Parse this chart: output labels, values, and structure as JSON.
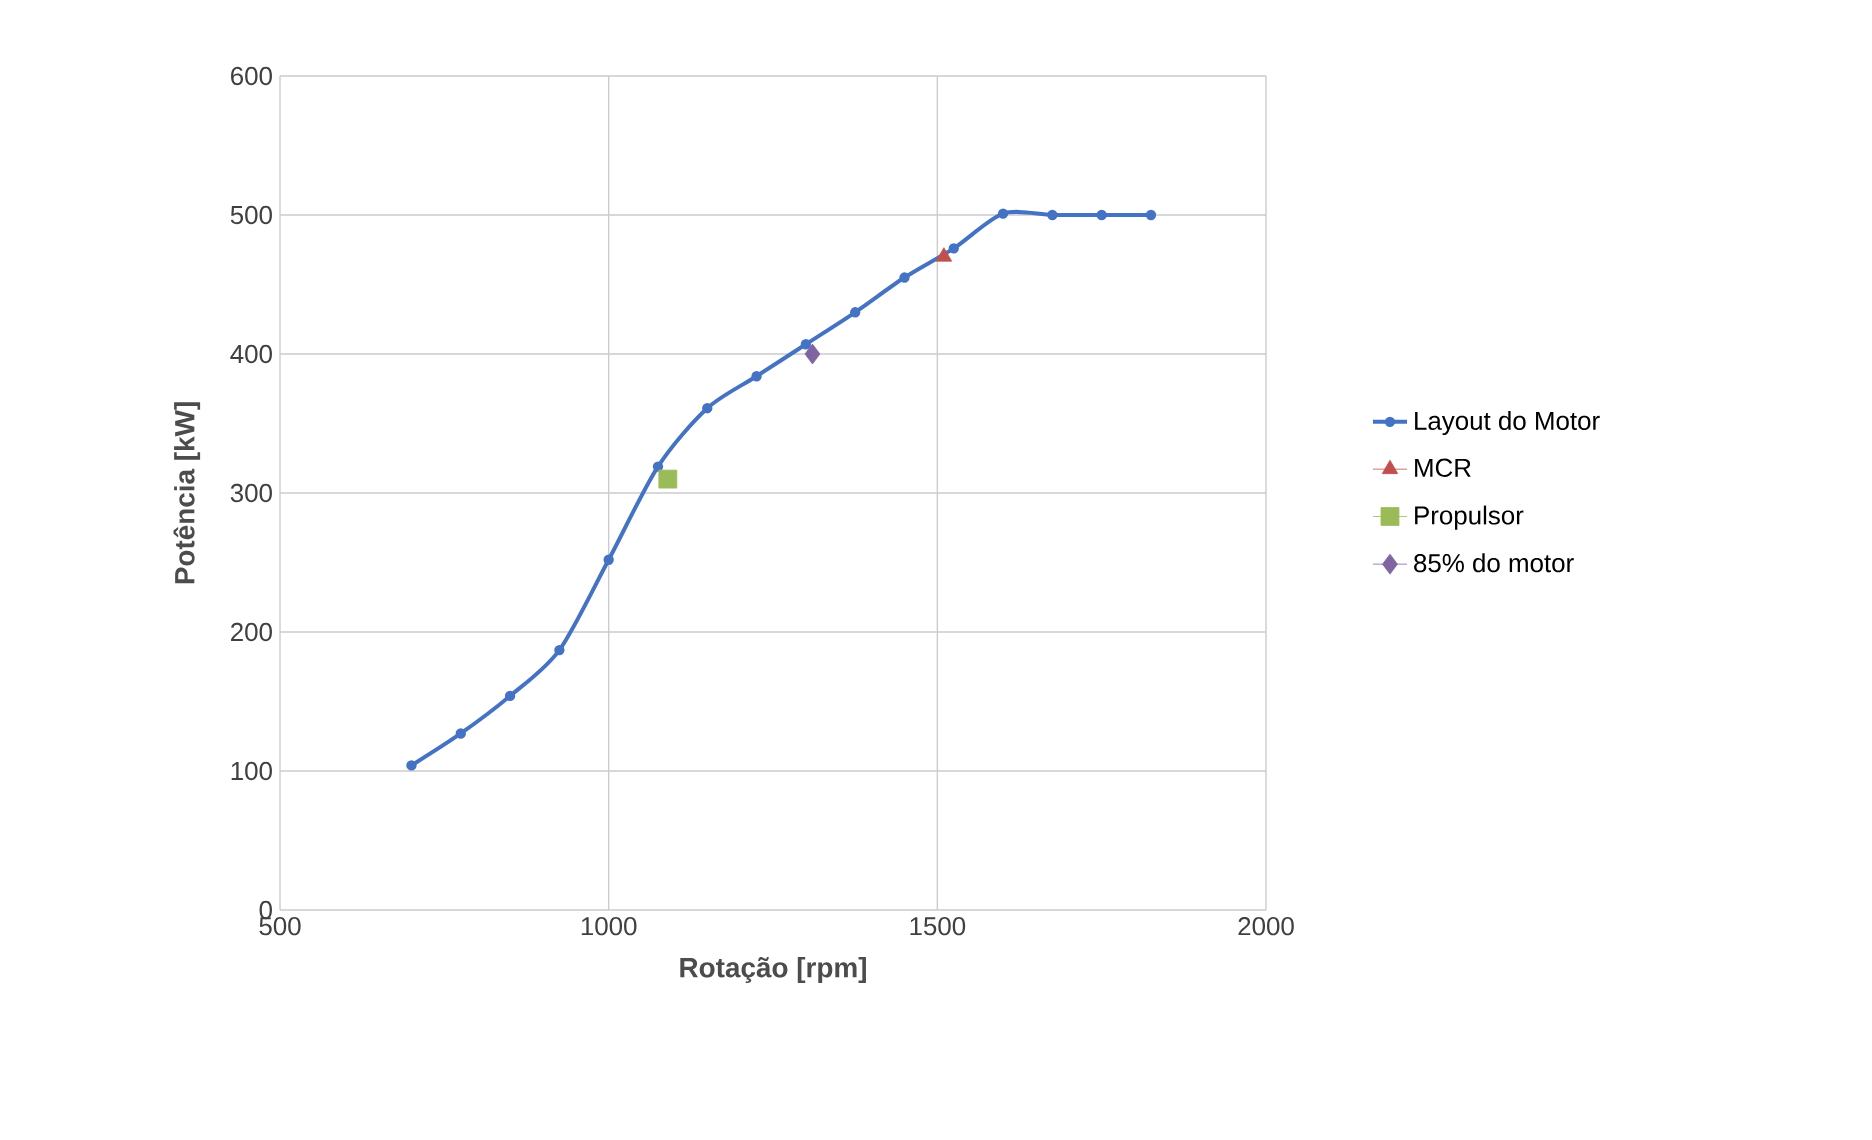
{
  "chart_data": {
    "type": "line",
    "xlabel": "Rotação [rpm]",
    "ylabel": "Potência [kW]",
    "xlim": [
      500,
      2000
    ],
    "xticks": [
      500,
      1000,
      1500,
      2000
    ],
    "ylim": [
      0,
      600
    ],
    "yticks": [
      0,
      100,
      200,
      300,
      400,
      500,
      600
    ],
    "grid": true,
    "legend": "right",
    "series": [
      {
        "name": "Layout do Motor",
        "color": "#4472c4",
        "marker": "circle",
        "x": [
          700,
          775,
          850,
          925,
          1000,
          1075,
          1150,
          1225,
          1300,
          1375,
          1450,
          1525,
          1600,
          1675,
          1750,
          1825
        ],
        "values": [
          104,
          127,
          154,
          187,
          252,
          319,
          361,
          384,
          407,
          430,
          455,
          476,
          501,
          500,
          500,
          500
        ]
      },
      {
        "name": "MCR",
        "type": "scatter",
        "color": "#c0504d",
        "marker": "triangle",
        "x": [
          1510
        ],
        "values": [
          470
        ]
      },
      {
        "name": "Propulsor",
        "type": "scatter",
        "color": "#9bbb59",
        "marker": "square",
        "x": [
          1090
        ],
        "values": [
          310
        ]
      },
      {
        "name": "85% do motor",
        "type": "scatter",
        "color": "#8064a2",
        "marker": "diamond",
        "x": [
          1310
        ],
        "values": [
          400
        ]
      }
    ]
  }
}
